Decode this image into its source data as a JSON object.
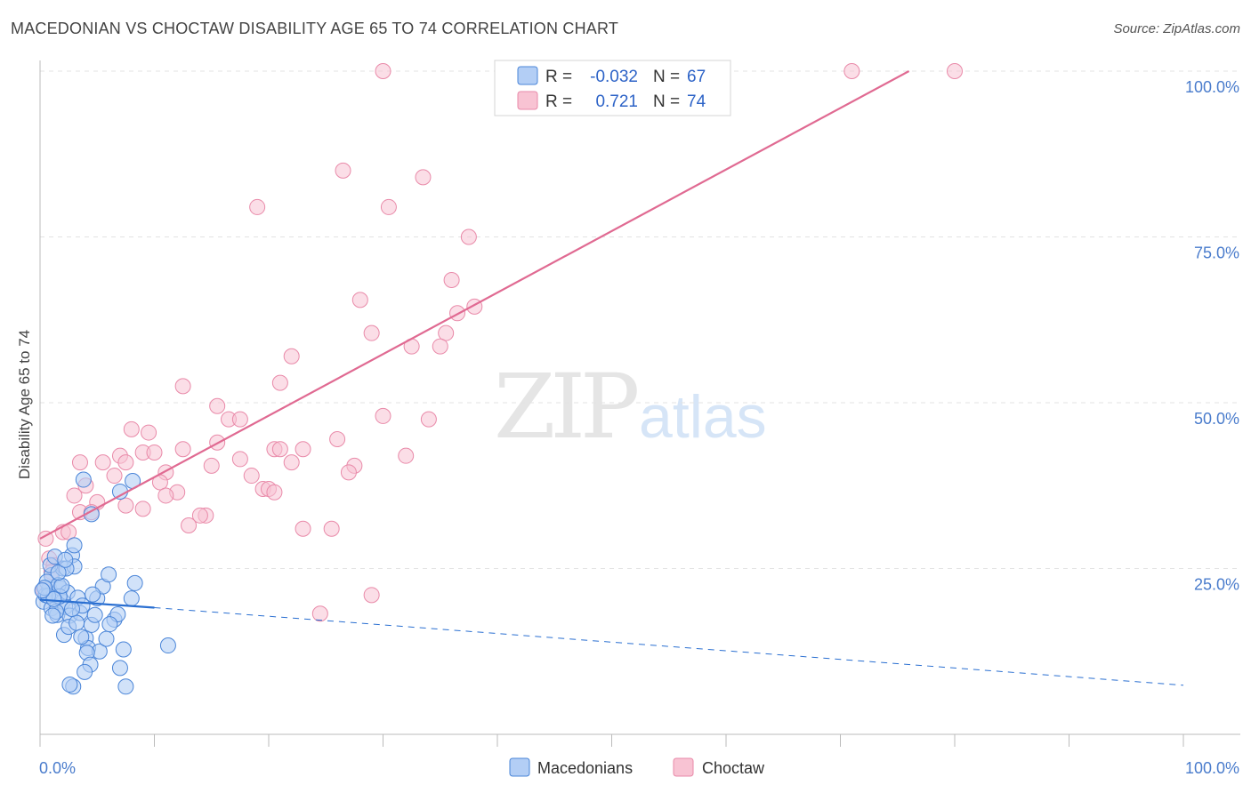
{
  "title": "MACEDONIAN VS CHOCTAW DISABILITY AGE 65 TO 74 CORRELATION CHART",
  "source": "Source: ZipAtlas.com",
  "watermark": {
    "zip": "ZIP",
    "atlas": "atlas"
  },
  "colors": {
    "macedonian_fill": "#b3cef5",
    "macedonian_stroke": "#4a85d8",
    "macedonian_line": "#2a6fd1",
    "choctaw_fill": "#f8c3d3",
    "choctaw_stroke": "#e98aa9",
    "choctaw_line": "#e06a92",
    "axis_label": "#4a7ccc"
  },
  "legend": {
    "r_label": "R =",
    "n_label": "N =",
    "rows": [
      {
        "series": "Macedonians",
        "r": "-0.032",
        "n": "67"
      },
      {
        "series": "Choctaw",
        "r": "0.721",
        "n": "74"
      }
    ]
  },
  "chart_data": {
    "type": "scatter",
    "title": "MACEDONIAN VS CHOCTAW DISABILITY AGE 65 TO 74 CORRELATION CHART",
    "xlabel": "",
    "ylabel": "Disability Age 65 to 74",
    "xlim": [
      0,
      100
    ],
    "ylim": [
      0,
      100
    ],
    "x_tick_labels": [
      "0.0%",
      "100.0%"
    ],
    "y_tick_labels": [
      "25.0%",
      "50.0%",
      "75.0%",
      "100.0%"
    ],
    "y_ticks": [
      25,
      50,
      75,
      100
    ],
    "grid": true,
    "series": [
      {
        "name": "Macedonians",
        "r": -0.032,
        "n": 67,
        "trend_solid": [
          [
            0,
            20.3
          ],
          [
            10,
            19.1
          ]
        ],
        "trend_dashed": [
          [
            10,
            19.1
          ],
          [
            100,
            7.4
          ]
        ],
        "points": [
          [
            0.3,
            20
          ],
          [
            0.5,
            21
          ],
          [
            0.8,
            22
          ],
          [
            1,
            24
          ],
          [
            1,
            19
          ],
          [
            1.2,
            21
          ],
          [
            1.5,
            18
          ],
          [
            1.8,
            22
          ],
          [
            2,
            25
          ],
          [
            2,
            20
          ],
          [
            0.6,
            23
          ],
          [
            0.9,
            25.5
          ],
          [
            1.3,
            26.8
          ],
          [
            1.6,
            22.5
          ],
          [
            2.2,
            19.2
          ],
          [
            2.4,
            21.4
          ],
          [
            2.6,
            17.9
          ],
          [
            1.7,
            20.8
          ],
          [
            2.8,
            27
          ],
          [
            3,
            28.5
          ],
          [
            3,
            25.3
          ],
          [
            3.3,
            20.6
          ],
          [
            3.5,
            18.3
          ],
          [
            3.7,
            19.4
          ],
          [
            4,
            14.5
          ],
          [
            4.2,
            13
          ],
          [
            4.5,
            16.5
          ],
          [
            4.8,
            18
          ],
          [
            5,
            20.5
          ],
          [
            5.2,
            12.5
          ],
          [
            5.5,
            22.3
          ],
          [
            6,
            24.1
          ],
          [
            6.5,
            17.3
          ],
          [
            6.8,
            18.1
          ],
          [
            7,
            10
          ],
          [
            7.3,
            12.8
          ],
          [
            7.5,
            7.2
          ],
          [
            8,
            20.5
          ],
          [
            8.3,
            22.8
          ],
          [
            2.1,
            15
          ],
          [
            2.5,
            16.2
          ],
          [
            3.2,
            16.8
          ],
          [
            3.6,
            14.7
          ],
          [
            4.1,
            12.3
          ],
          [
            4.4,
            10.5
          ],
          [
            1.4,
            18.5
          ],
          [
            1.1,
            17.9
          ],
          [
            0.7,
            20.9
          ],
          [
            2.9,
            7.2
          ],
          [
            2.6,
            7.5
          ],
          [
            3.9,
            9.4
          ],
          [
            4.6,
            21.1
          ],
          [
            5.8,
            14.4
          ],
          [
            6.1,
            16.6
          ],
          [
            0.4,
            22.1
          ],
          [
            1.9,
            22.4
          ],
          [
            2.3,
            25
          ],
          [
            1.6,
            24.4
          ],
          [
            2.2,
            26.3
          ],
          [
            3.8,
            38.4
          ],
          [
            8.1,
            38.2
          ],
          [
            7,
            36.6
          ],
          [
            11.2,
            13.4
          ],
          [
            4.5,
            33.2
          ],
          [
            2.8,
            18.9
          ],
          [
            1.2,
            20.4
          ],
          [
            0.2,
            21.7
          ]
        ]
      },
      {
        "name": "Choctaw",
        "r": 0.721,
        "n": 74,
        "trend_solid": [
          [
            0,
            29.5
          ],
          [
            76,
            100
          ]
        ],
        "points": [
          [
            30,
            100
          ],
          [
            71,
            100
          ],
          [
            80,
            100
          ],
          [
            26.5,
            85
          ],
          [
            33.5,
            84
          ],
          [
            19,
            79.5
          ],
          [
            30.5,
            79.5
          ],
          [
            37.5,
            75
          ],
          [
            36,
            68.5
          ],
          [
            28,
            65.5
          ],
          [
            38,
            64.5
          ],
          [
            36.5,
            63.5
          ],
          [
            29,
            60.5
          ],
          [
            35.5,
            60.5
          ],
          [
            32.5,
            58.5
          ],
          [
            35,
            58.5
          ],
          [
            22,
            57
          ],
          [
            21,
            53
          ],
          [
            12.5,
            52.5
          ],
          [
            15.5,
            49.5
          ],
          [
            30,
            48
          ],
          [
            34,
            47.5
          ],
          [
            16.5,
            47.5
          ],
          [
            17.5,
            47.5
          ],
          [
            8,
            46
          ],
          [
            9.5,
            45.5
          ],
          [
            26,
            44.5
          ],
          [
            15.5,
            44
          ],
          [
            23,
            43
          ],
          [
            20.5,
            43
          ],
          [
            21,
            43
          ],
          [
            9,
            42.5
          ],
          [
            10,
            42.5
          ],
          [
            12.5,
            43
          ],
          [
            5.5,
            41
          ],
          [
            7,
            42
          ],
          [
            7.5,
            41
          ],
          [
            3.5,
            41
          ],
          [
            32,
            42
          ],
          [
            15,
            40.5
          ],
          [
            17.5,
            41.5
          ],
          [
            22,
            41
          ],
          [
            27.5,
            40.5
          ],
          [
            27,
            39.5
          ],
          [
            11,
            39.5
          ],
          [
            6.5,
            39
          ],
          [
            18.5,
            39
          ],
          [
            10.5,
            38
          ],
          [
            4,
            37.5
          ],
          [
            19.5,
            37
          ],
          [
            20,
            37
          ],
          [
            20.5,
            36.5
          ],
          [
            12,
            36.5
          ],
          [
            11,
            36
          ],
          [
            3,
            36
          ],
          [
            5,
            35
          ],
          [
            7.5,
            34.5
          ],
          [
            9,
            34
          ],
          [
            3.5,
            33.5
          ],
          [
            4.5,
            33.5
          ],
          [
            14.5,
            33
          ],
          [
            14,
            33
          ],
          [
            13,
            31.5
          ],
          [
            23,
            31
          ],
          [
            25.5,
            31
          ],
          [
            2,
            30.5
          ],
          [
            2.5,
            30.5
          ],
          [
            0.5,
            29.5
          ],
          [
            0.8,
            26.5
          ],
          [
            1.2,
            25.5
          ],
          [
            1,
            24.5
          ],
          [
            29,
            21
          ],
          [
            24.5,
            18.2
          ],
          [
            0.3,
            21.8
          ]
        ]
      }
    ]
  }
}
